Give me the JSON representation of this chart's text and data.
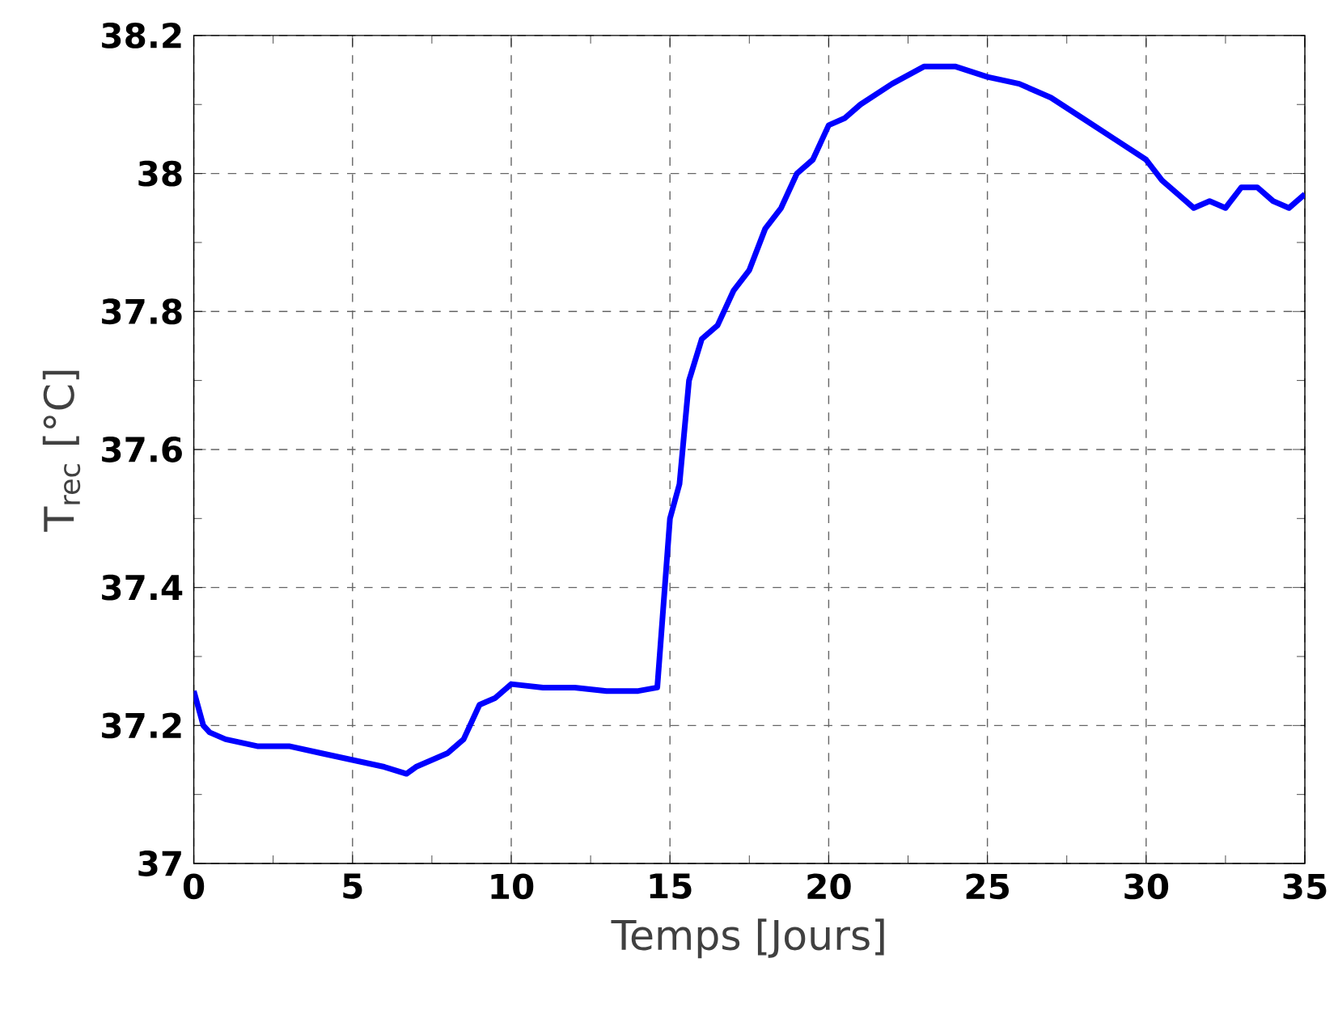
{
  "chart_data": {
    "type": "line",
    "xlabel": "Temps [Jours]",
    "ylabel": "T$_{rec}$ [°C]",
    "xlim": [
      0,
      35
    ],
    "ylim": [
      37,
      38.2
    ],
    "xticks": [
      0,
      5,
      10,
      15,
      20,
      25,
      30,
      35
    ],
    "yticks": [
      37,
      37.2,
      37.4,
      37.6,
      37.8,
      38,
      38.2
    ],
    "grid": true,
    "marker": "none",
    "line_style": "solid",
    "series": [
      {
        "color": "#0000ff",
        "x": [
          0,
          0.3,
          0.5,
          1,
          2,
          3,
          4,
          5,
          6,
          6.7,
          7,
          8,
          8.5,
          9,
          9.5,
          10,
          11,
          12,
          13,
          14,
          14.6,
          15,
          15.3,
          15.6,
          16,
          16.5,
          17,
          17.5,
          18,
          18.5,
          19,
          19.5,
          20,
          20.5,
          21,
          22,
          23,
          24,
          25,
          26,
          27,
          28,
          29,
          30,
          30.5,
          31,
          31.5,
          32,
          32.5,
          33,
          33.5,
          34,
          34.5,
          35
        ],
        "values": [
          37.25,
          37.2,
          37.19,
          37.18,
          37.17,
          37.17,
          37.16,
          37.15,
          37.14,
          37.13,
          37.14,
          37.16,
          37.18,
          37.23,
          37.24,
          37.26,
          37.255,
          37.255,
          37.25,
          37.25,
          37.255,
          37.5,
          37.55,
          37.7,
          37.76,
          37.78,
          37.83,
          37.86,
          37.92,
          37.95,
          38.0,
          38.02,
          38.07,
          38.08,
          38.1,
          38.13,
          38.155,
          38.155,
          38.14,
          38.13,
          38.11,
          38.08,
          38.05,
          38.02,
          37.99,
          37.97,
          37.95,
          37.96,
          37.95,
          37.98,
          37.98,
          37.96,
          37.95,
          37.97
        ]
      }
    ]
  }
}
